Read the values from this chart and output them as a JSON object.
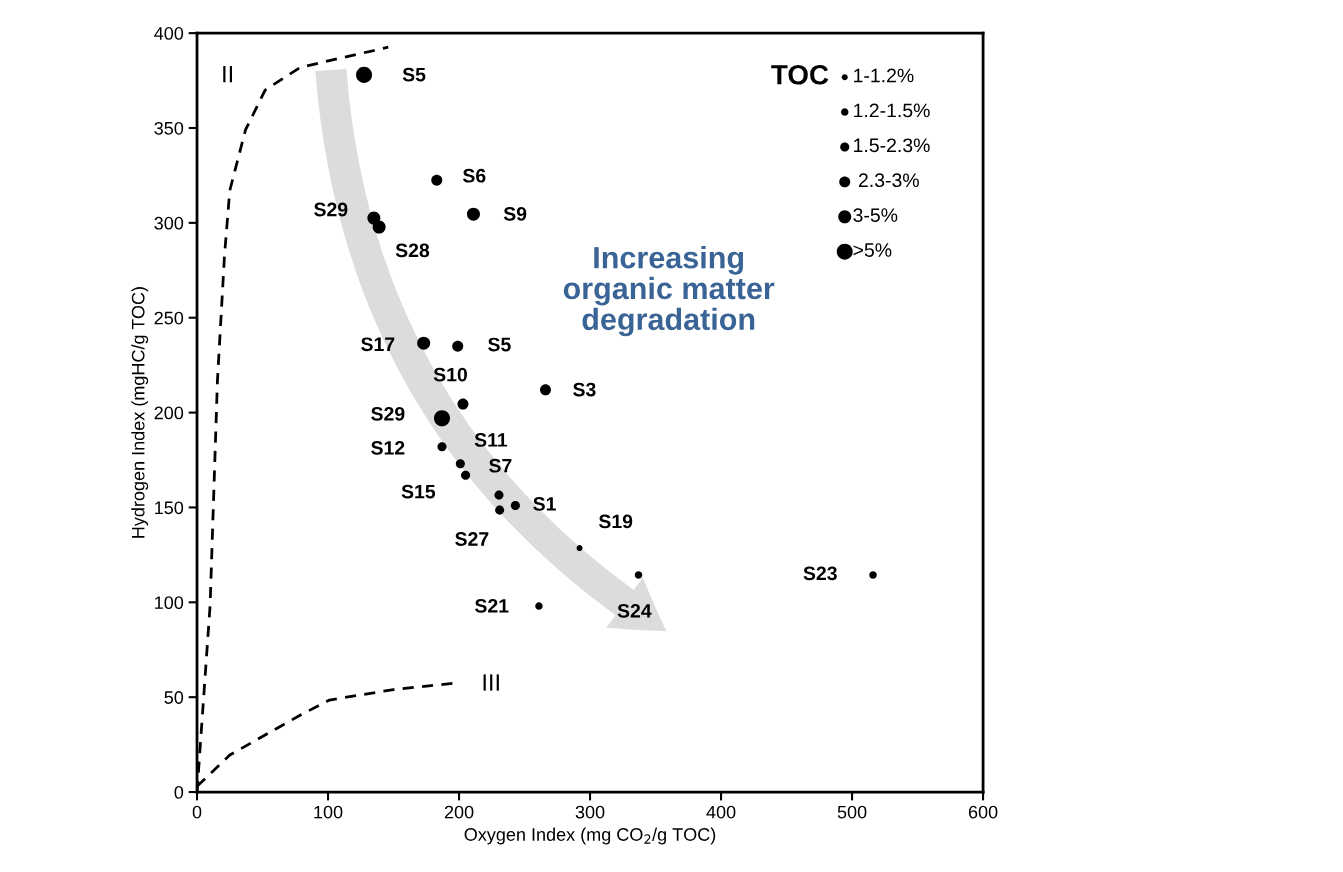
{
  "chart_data": {
    "type": "bubble",
    "xlabel": "Oxygen Index (mg CO$_{2}$/g TOC)",
    "ylabel": "Hydrogen Index (mgHC/g TOC)",
    "legend_title": "TOC",
    "xlim": [
      0,
      600
    ],
    "xticks": [
      0,
      100,
      200,
      300,
      400,
      500,
      600
    ],
    "ylim": [
      0,
      400
    ],
    "yticks": [
      0,
      50,
      100,
      150,
      200,
      250,
      300,
      350,
      400
    ],
    "grid": false,
    "size_legend": [
      {
        "value": 0.14,
        "label": "1-1.2%"
      },
      {
        "value": 0.22,
        "label": "1.2-1.5%"
      },
      {
        "value": 0.32,
        "label": "1.5-2.3%"
      },
      {
        "value": 0.47,
        "label": " 2.3-3%"
      },
      {
        "value": 0.66,
        "label": "3-5%"
      },
      {
        "value": 1,
        "label": ">5%"
      }
    ],
    "series": [
      {
        "color": "#000000",
        "x": [
          127.5,
          183,
          211,
          135,
          139,
          173,
          199,
          266,
          203,
          187,
          187,
          201,
          205,
          230.5,
          243,
          231,
          292,
          337,
          516,
          261
        ],
        "values": [
          378,
          322.5,
          304.6,
          302.5,
          297.8,
          236.6,
          235,
          212,
          204.5,
          197,
          182,
          173,
          167,
          156.5,
          151,
          148.6,
          128.6,
          114.4,
          114.4,
          98
        ],
        "sizes": [
          1,
          0.47,
          0.66,
          0.66,
          0.66,
          0.66,
          0.47,
          0.47,
          0.47,
          1,
          0.32,
          0.32,
          0.32,
          0.32,
          0.32,
          0.32,
          0.14,
          0.22,
          0.22,
          0.22
        ],
        "value_labels": [
          "S5",
          "S6",
          "S9",
          "S29",
          "S28",
          "S17",
          "S5",
          "S3",
          "S10",
          "S29",
          "S12",
          "S11",
          "S15",
          "S7",
          "S1",
          "S27",
          "S19",
          "S24",
          "S23",
          "S21"
        ]
      },
      {
        "type": "line",
        "name": "II",
        "color": "#000000",
        "line_style": "dashed",
        "x": [
          0,
          10,
          15.6,
          21,
          25,
          37,
          52,
          79,
          146
        ],
        "values": [
          0,
          98.5,
          217,
          283,
          317,
          349,
          370,
          382,
          392.6
        ]
      },
      {
        "type": "line",
        "name": "III",
        "color": "#000000",
        "line_style": "dashed",
        "x": [
          0,
          25,
          79,
          101,
          150,
          197
        ],
        "values": [
          3,
          19.5,
          40.6,
          48.5,
          54,
          57.4
        ]
      }
    ],
    "annotations": [
      "Increasing\norganic matter\ndegradation"
    ]
  }
}
